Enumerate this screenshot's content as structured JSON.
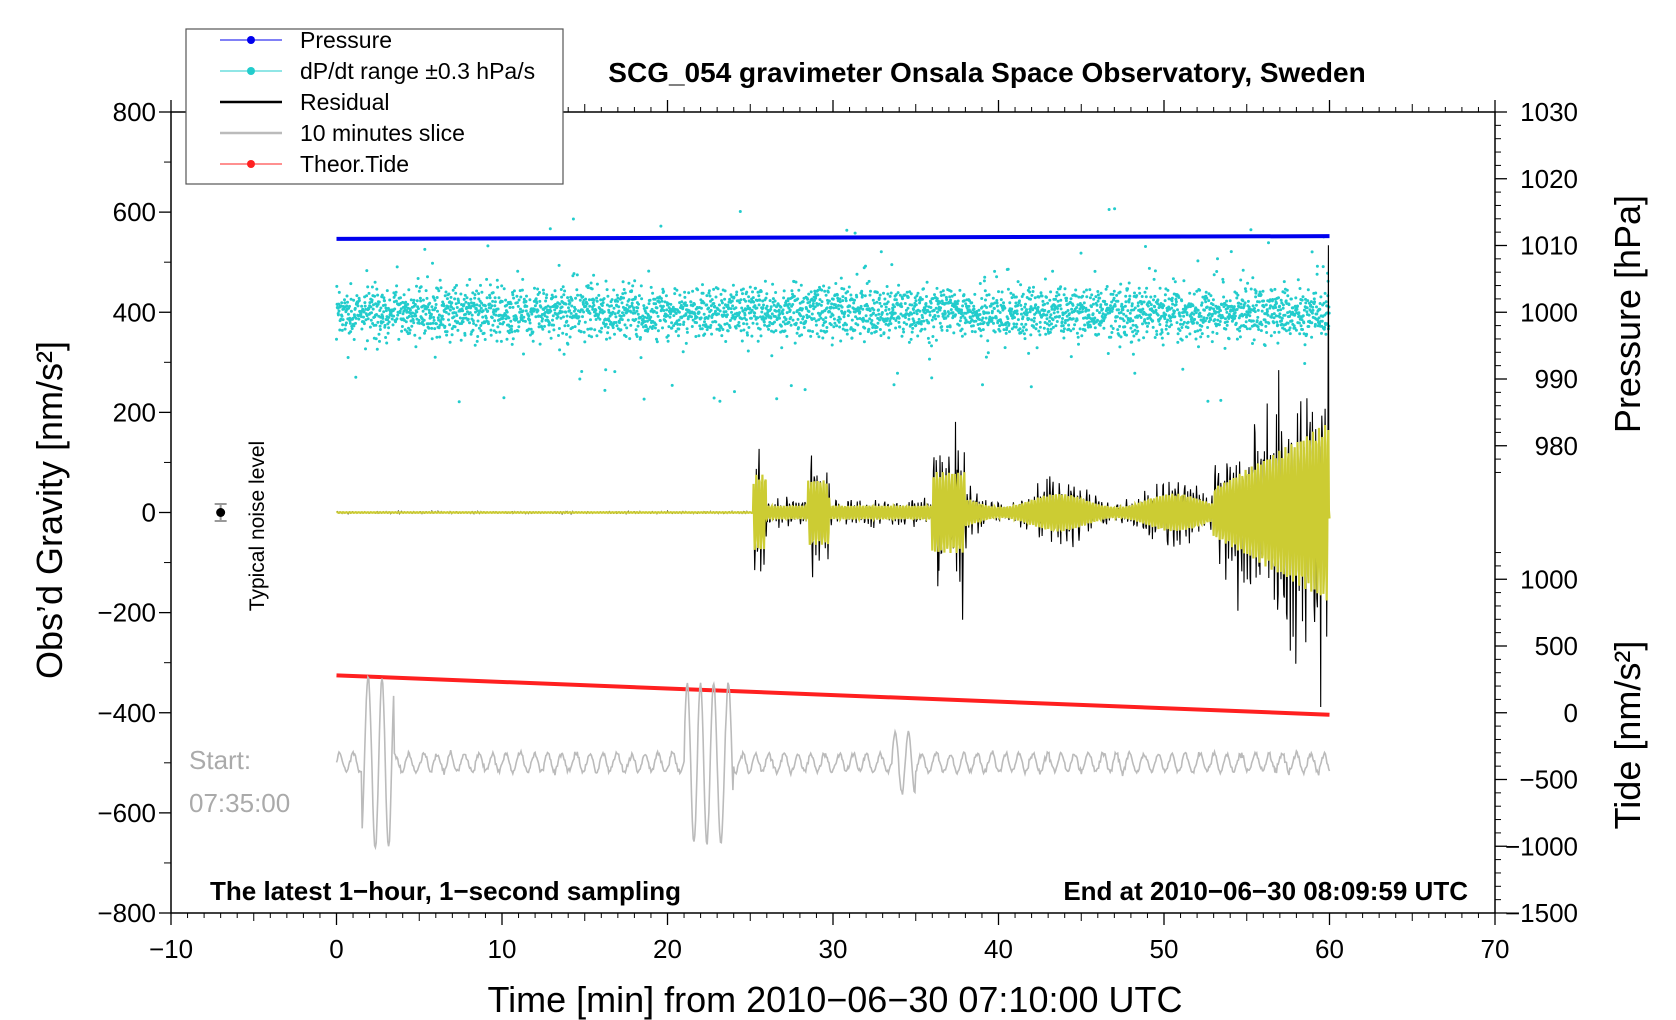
{
  "chart_data": {
    "type": "line",
    "title": "SCG_054 gravimeter Onsala Space Observatory, Sweden",
    "xlabel": "Time [min] from 2010−06−30 07:10:00 UTC",
    "ylabel_left": "Obs’d Gravity [nm/s²]",
    "ylabel_right_top": "Pressure [hPa]",
    "ylabel_right_bottom": "Tide [nm/s²]",
    "xlim": [
      -10,
      70
    ],
    "ylim": [
      -800,
      800
    ],
    "x_ticks": [
      -10,
      0,
      10,
      20,
      30,
      40,
      50,
      60,
      70
    ],
    "x_tick_labels": [
      "−10",
      "0",
      "10",
      "20",
      "30",
      "40",
      "50",
      "60",
      "70"
    ],
    "y_ticks": [
      800,
      600,
      400,
      200,
      0,
      -200,
      -400,
      -600,
      -800
    ],
    "y_tick_labels": [
      "800",
      "600",
      "400",
      "200",
      "0",
      "−200",
      "−400",
      "−600",
      "−800"
    ],
    "pressure_axis": {
      "ticks": [
        1030,
        1020,
        1010,
        1000,
        990,
        980
      ],
      "tick_labels": [
        "1030",
        "1020",
        "1010",
        "1000",
        "990",
        "980"
      ],
      "gravity_equivalent": [
        800,
        666.7,
        533.3,
        400,
        266.7,
        133.3
      ]
    },
    "tide_axis": {
      "ticks": [
        1000,
        500,
        0,
        -500,
        -1000,
        -1500
      ],
      "tick_labels": [
        "1000",
        "500",
        "0",
        "−500",
        "−1000",
        "−1500"
      ],
      "gravity_equivalent": [
        -133.3,
        -266.7,
        -400,
        -533.3,
        -666.7,
        -800
      ]
    },
    "legend": {
      "placement": "top-left",
      "entries": [
        {
          "label": "Pressure",
          "color": "#0000ee",
          "marker": "dot"
        },
        {
          "label": "dP/dt range ±0.3 hPa/s",
          "color": "#22cccc",
          "marker": "dot"
        },
        {
          "label": "Residual",
          "color": "#000000",
          "marker": "line"
        },
        {
          "label": "10 minutes slice",
          "color": "#bbbbbb",
          "marker": "line"
        },
        {
          "label": "Theor.Tide",
          "color": "#ff2020",
          "marker": "dot"
        }
      ]
    },
    "series": [
      {
        "name": "Pressure",
        "color": "#0000ee",
        "x": [
          0,
          60
        ],
        "y_hpa": [
          1011.0,
          1011.4
        ]
      },
      {
        "name": "dP/dt range ±0.3 hPa/s",
        "color": "#22cccc",
        "center_y": 400,
        "range": [
          220,
          610
        ]
      },
      {
        "name": "Residual",
        "color": "#000000",
        "x": [
          0,
          25,
          25.3,
          26,
          28,
          29,
          35,
          36,
          37,
          38,
          53,
          55,
          57,
          58,
          59,
          59.5,
          60
        ],
        "y": [
          0,
          0,
          -190,
          170,
          120,
          -130,
          100,
          180,
          200,
          -190,
          100,
          150,
          200,
          -260,
          330,
          -390,
          -260
        ]
      },
      {
        "name": "Smoothed",
        "color": "#cccc33",
        "x": [
          0,
          25,
          30,
          37,
          40,
          50,
          55,
          58,
          59.5,
          60
        ],
        "y": [
          0,
          0,
          30,
          90,
          40,
          60,
          120,
          150,
          200,
          -120
        ]
      },
      {
        "name": "Theor.Tide",
        "color": "#ff2020",
        "x": [
          0,
          60
        ],
        "y_tide": [
          280,
          -15
        ]
      },
      {
        "name": "10 minutes slice",
        "color": "#bbbbbb",
        "x": [
          0,
          2,
          3,
          21.5,
          23,
          34,
          60
        ],
        "y": [
          -495,
          -690,
          -330,
          -730,
          -340,
          -580,
          -480
        ]
      }
    ],
    "noise_marker": {
      "x": -7,
      "y": 0,
      "error": 17,
      "label": "Typical noise level"
    },
    "annotations": {
      "start_line1": "Start:",
      "start_line2": "07:35:00",
      "bottom_left": "The latest 1−hour, 1−second sampling",
      "bottom_right": "End at 2010−06−30 08:09:59 UTC"
    }
  }
}
